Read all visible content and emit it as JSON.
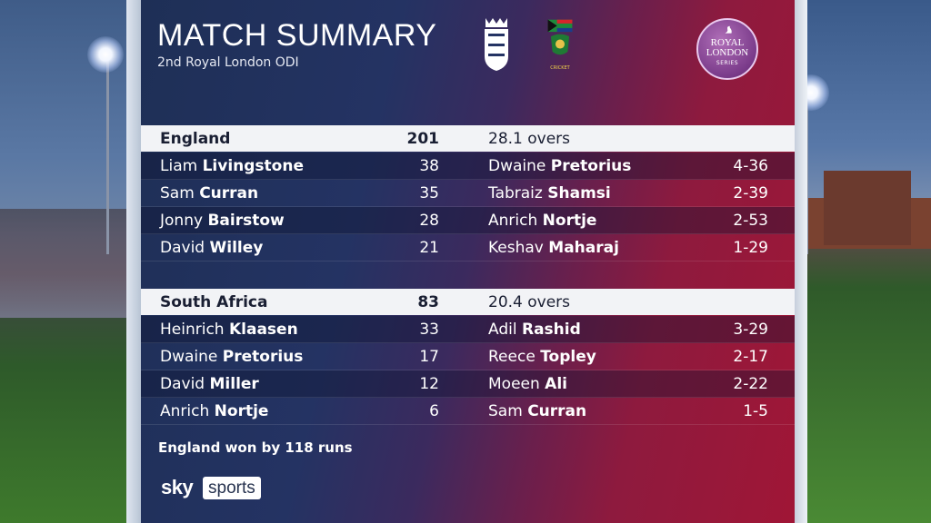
{
  "header": {
    "title": "MATCH SUMMARY",
    "subtitle": "2nd Royal London ODI",
    "sa_crest_text": "CRICKET",
    "badge_line1": "ROYAL",
    "badge_line2": "LONDON",
    "badge_line3": "SERIES"
  },
  "innings": [
    {
      "team": "England",
      "total": "201",
      "overs": "28.1 overs",
      "batting": [
        {
          "first": "Liam",
          "last": "Livingstone",
          "runs": "38"
        },
        {
          "first": "Sam",
          "last": "Curran",
          "runs": "35"
        },
        {
          "first": "Jonny",
          "last": "Bairstow",
          "runs": "28"
        },
        {
          "first": "David",
          "last": "Willey",
          "runs": "21"
        }
      ],
      "bowling": [
        {
          "first": "Dwaine",
          "last": "Pretorius",
          "figures": "4-36"
        },
        {
          "first": "Tabraiz",
          "last": "Shamsi",
          "figures": "2-39"
        },
        {
          "first": "Anrich",
          "last": "Nortje",
          "figures": "2-53"
        },
        {
          "first": "Keshav",
          "last": "Maharaj",
          "figures": "1-29"
        }
      ]
    },
    {
      "team": "South Africa",
      "total": "83",
      "overs": "20.4 overs",
      "batting": [
        {
          "first": "Heinrich",
          "last": "Klaasen",
          "runs": "33"
        },
        {
          "first": "Dwaine",
          "last": "Pretorius",
          "runs": "17"
        },
        {
          "first": "David",
          "last": "Miller",
          "runs": "12"
        },
        {
          "first": "Anrich",
          "last": "Nortje",
          "runs": "6"
        }
      ],
      "bowling": [
        {
          "first": "Adil",
          "last": "Rashid",
          "figures": "3-29"
        },
        {
          "first": "Reece",
          "last": "Topley",
          "figures": "2-17"
        },
        {
          "first": "Moeen",
          "last": "Ali",
          "figures": "2-22"
        },
        {
          "first": "Sam",
          "last": "Curran",
          "figures": "1-5"
        }
      ]
    }
  ],
  "result": "England won by 118 runs",
  "broadcaster": {
    "part1": "sky",
    "part2": "sports"
  },
  "colors": {
    "panel_left": "#1e2f56",
    "panel_right": "#a01636",
    "header_row": "#f2f3f6"
  }
}
